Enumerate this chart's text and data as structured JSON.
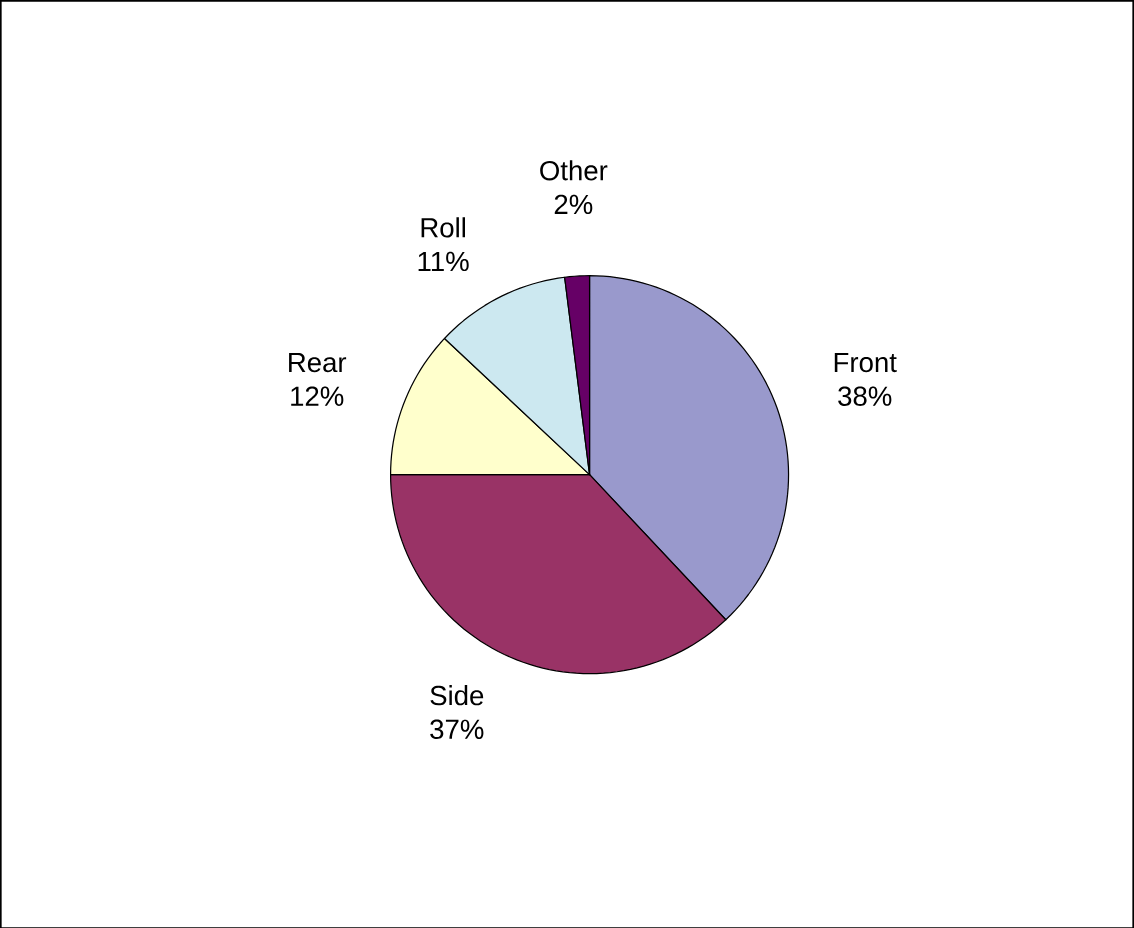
{
  "chart_data": {
    "type": "pie",
    "categories": [
      "Front",
      "Side",
      "Rear",
      "Roll",
      "Other"
    ],
    "values": [
      38,
      37,
      12,
      11,
      2
    ],
    "value_labels": [
      "38%",
      "37%",
      "12%",
      "11%",
      "2%"
    ],
    "colors": [
      "#9999cc",
      "#993366",
      "#ffffcc",
      "#cce8f0",
      "#660066"
    ]
  }
}
